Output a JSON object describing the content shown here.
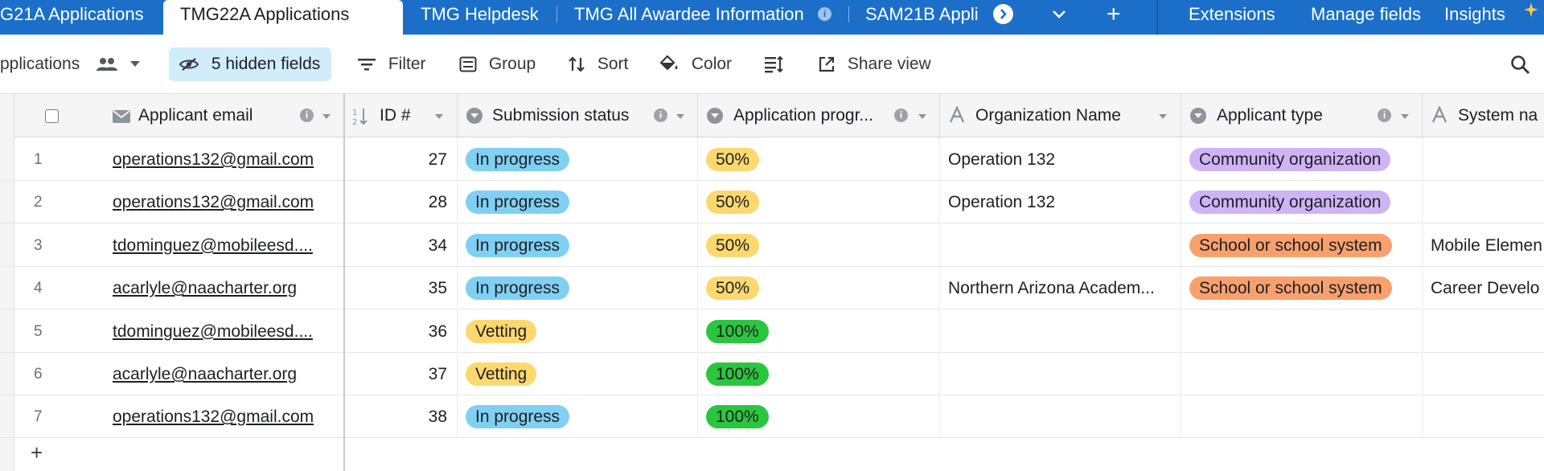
{
  "tabs": [
    {
      "label": "G21A Applications"
    },
    {
      "label": "TMG22A Applications",
      "active": true
    },
    {
      "label": "TMG Helpdesk"
    },
    {
      "label": "TMG All Awardee Information"
    },
    {
      "label": "SAM21B Appli"
    }
  ],
  "tabbar_right": {
    "add_label": "+",
    "extensions": "Extensions",
    "manage_fields": "Manage fields",
    "insights": "Insights"
  },
  "toolbar": {
    "view_name": "pplications",
    "hidden_fields": "5 hidden fields",
    "filter": "Filter",
    "group": "Group",
    "sort": "Sort",
    "color": "Color",
    "share_view": "Share view"
  },
  "columns": [
    {
      "label": "Applicant email",
      "icon": "email-icon"
    },
    {
      "label": "ID #",
      "icon": "autonumber-icon"
    },
    {
      "label": "Submission status",
      "icon": "single-select-icon"
    },
    {
      "label": "Application progr...",
      "icon": "single-select-icon"
    },
    {
      "label": "Organization Name",
      "icon": "text-icon"
    },
    {
      "label": "Applicant type",
      "icon": "single-select-icon"
    },
    {
      "label": "System na",
      "icon": "text-icon"
    }
  ],
  "rows": [
    {
      "n": "1",
      "email": "operations132@gmail.com",
      "id": "27",
      "status": "In progress",
      "progress": "50%",
      "org": "Operation 132",
      "type": "Community organization",
      "system": ""
    },
    {
      "n": "2",
      "email": "operations132@gmail.com",
      "id": "28",
      "status": "In progress",
      "progress": "50%",
      "org": "Operation 132",
      "type": "Community organization",
      "system": ""
    },
    {
      "n": "3",
      "email": "tdominguez@mobileesd....",
      "id": "34",
      "status": "In progress",
      "progress": "50%",
      "org": "",
      "type": "School or school system",
      "system": "Mobile Elemen"
    },
    {
      "n": "4",
      "email": "acarlyle@naacharter.org",
      "id": "35",
      "status": "In progress",
      "progress": "50%",
      "org": "Northern Arizona Academ...",
      "type": "School or school system",
      "system": "Career Develo"
    },
    {
      "n": "5",
      "email": "tdominguez@mobileesd....",
      "id": "36",
      "status": "Vetting",
      "progress": "100%",
      "org": "",
      "type": "",
      "system": ""
    },
    {
      "n": "6",
      "email": "acarlyle@naacharter.org",
      "id": "37",
      "status": "Vetting",
      "progress": "100%",
      "org": "",
      "type": "",
      "system": ""
    },
    {
      "n": "7",
      "email": "operations132@gmail.com",
      "id": "38",
      "status": "In progress",
      "progress": "100%",
      "org": "",
      "type": "",
      "system": ""
    }
  ],
  "add_row_label": "+",
  "colors": {
    "tabbar": "#1b6fc9",
    "in_progress": "#7fd0f2",
    "vetting": "#fcd86e",
    "progress_50": "#fcd86e",
    "progress_100": "#2bc63f",
    "community_org": "#ceb3f5",
    "school": "#f9a06c",
    "hidden_fields_bg": "#d1ecfb"
  }
}
